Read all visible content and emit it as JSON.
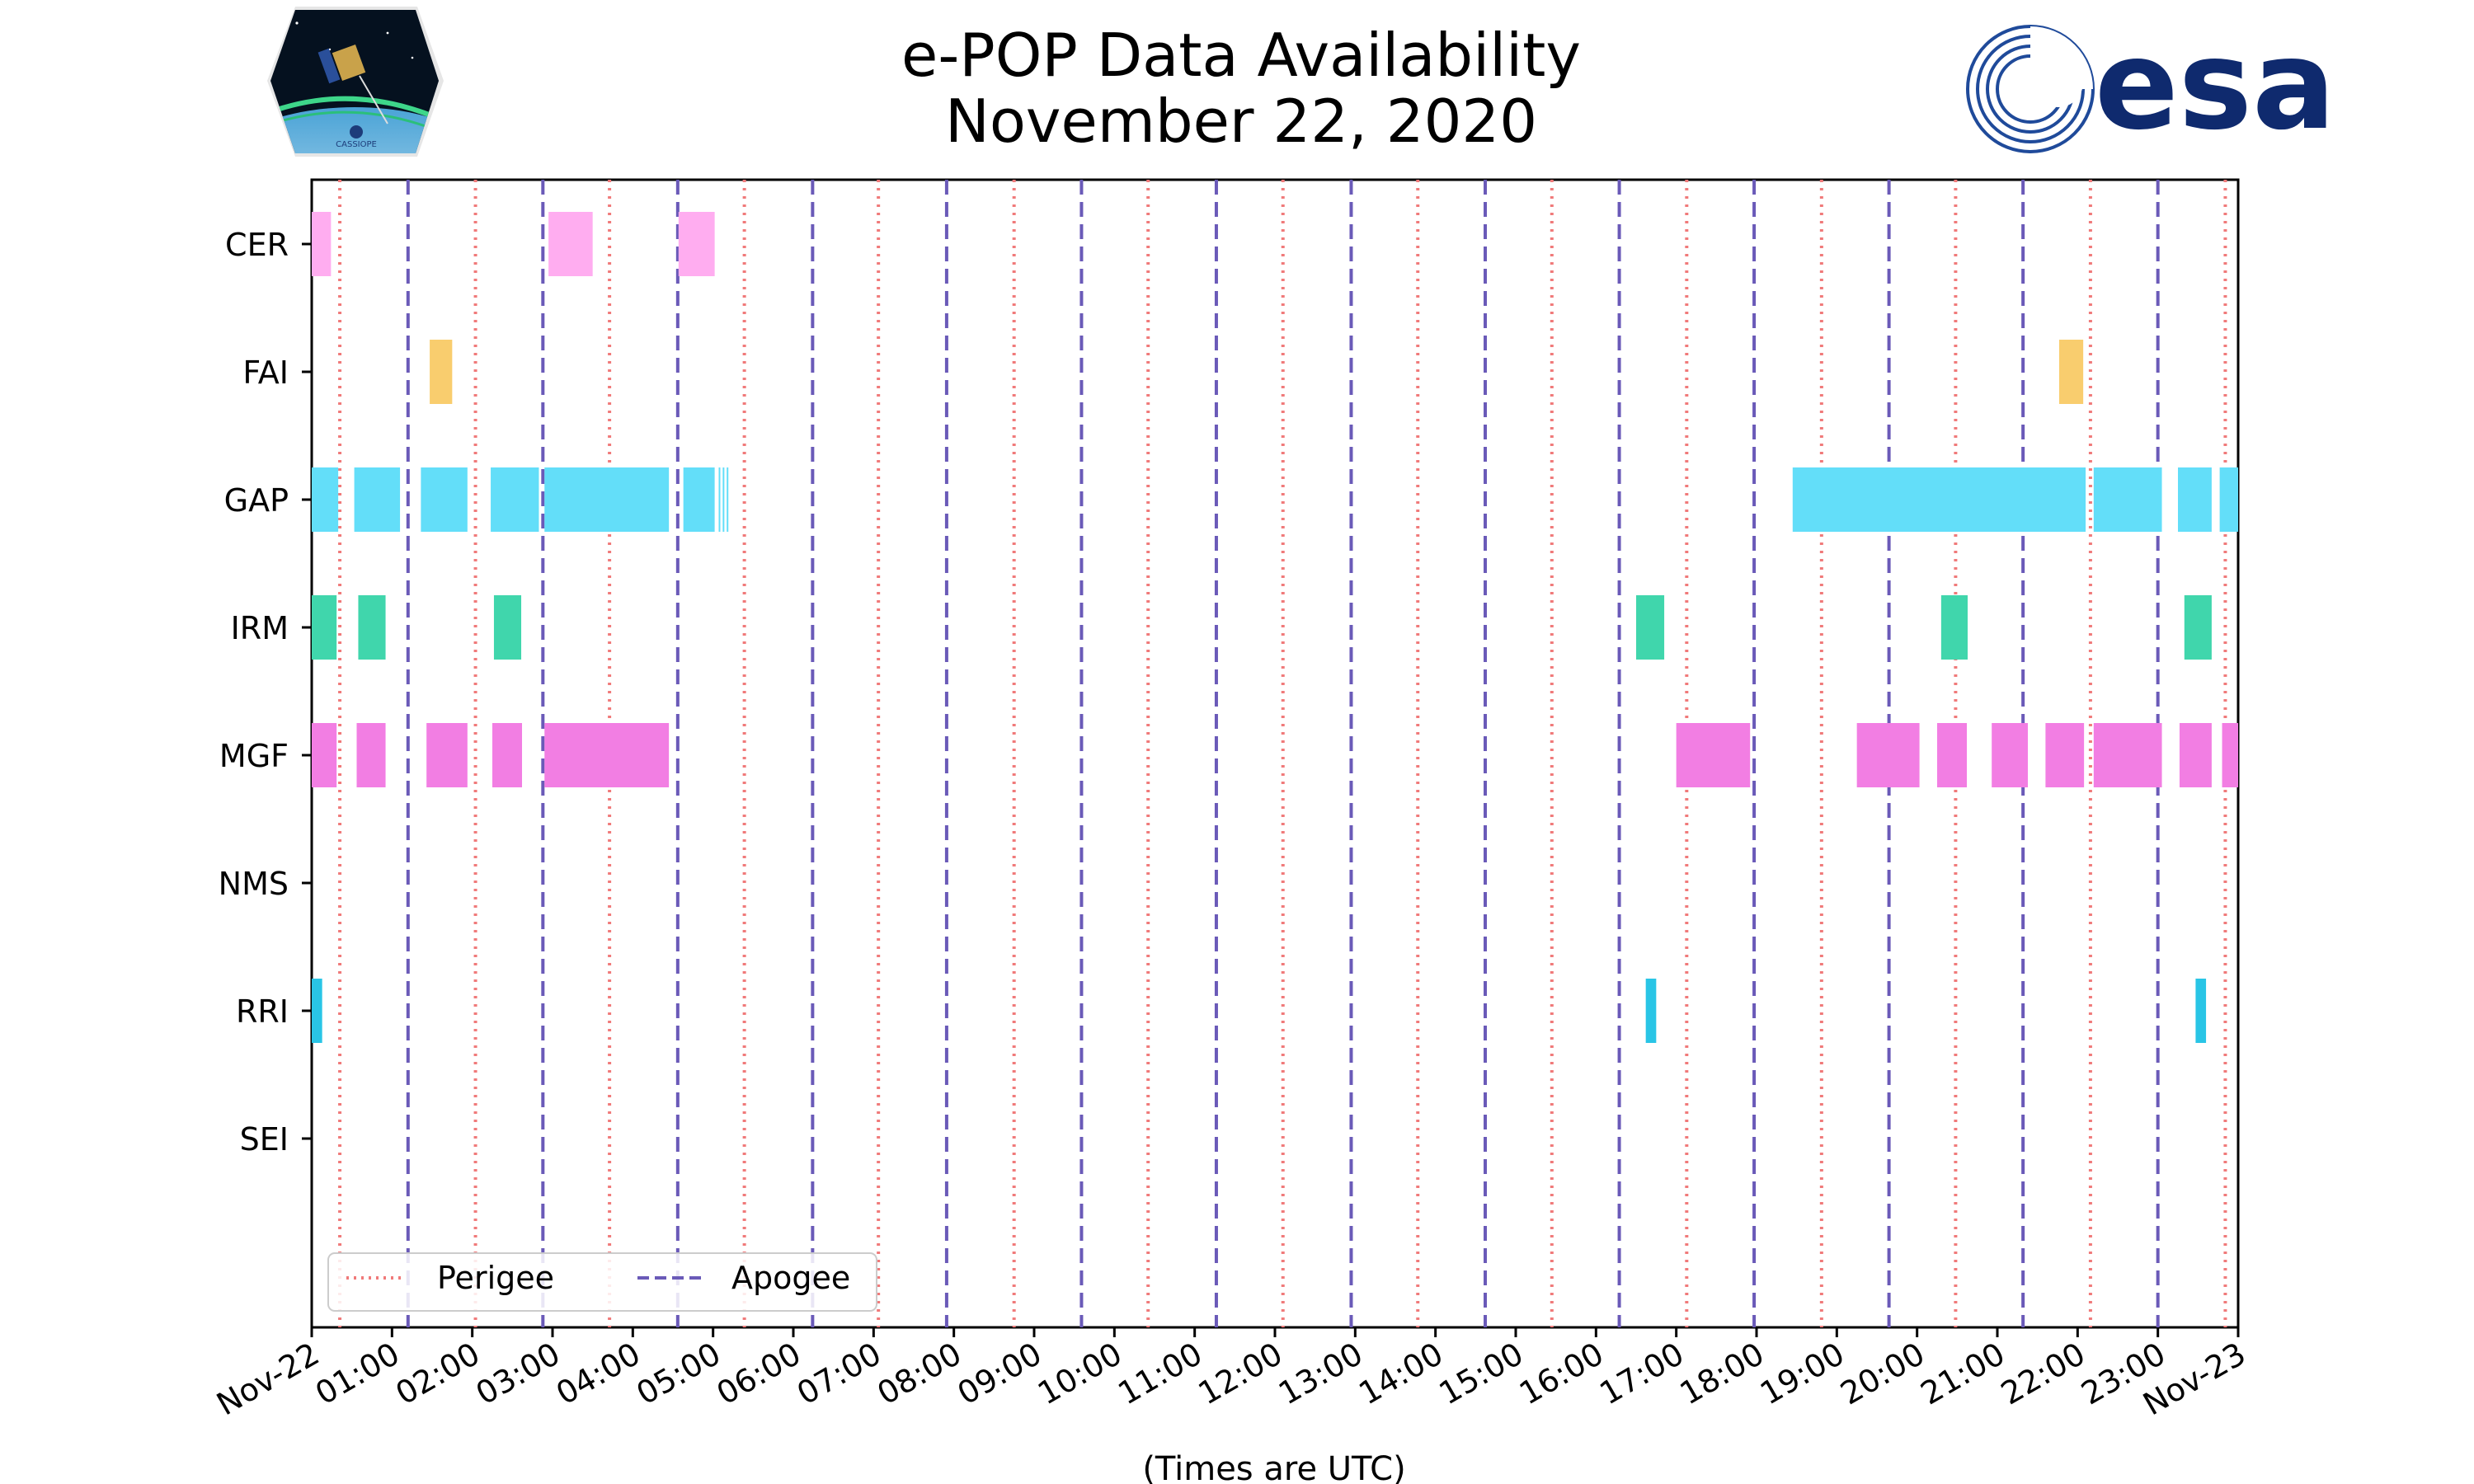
{
  "chart_data": {
    "type": "timeline",
    "title": "e-POP Data Availability",
    "subtitle": "November 22, 2020",
    "xlabel": "(Times are UTC)",
    "x_unit": "hours UTC",
    "xlim": [
      0,
      24
    ],
    "x_ticks": [
      {
        "value": 0,
        "label": "Nov-22"
      },
      {
        "value": 1,
        "label": "01:00"
      },
      {
        "value": 2,
        "label": "02:00"
      },
      {
        "value": 3,
        "label": "03:00"
      },
      {
        "value": 4,
        "label": "04:00"
      },
      {
        "value": 5,
        "label": "05:00"
      },
      {
        "value": 6,
        "label": "06:00"
      },
      {
        "value": 7,
        "label": "07:00"
      },
      {
        "value": 8,
        "label": "08:00"
      },
      {
        "value": 9,
        "label": "09:00"
      },
      {
        "value": 10,
        "label": "10:00"
      },
      {
        "value": 11,
        "label": "11:00"
      },
      {
        "value": 12,
        "label": "12:00"
      },
      {
        "value": 13,
        "label": "13:00"
      },
      {
        "value": 14,
        "label": "14:00"
      },
      {
        "value": 15,
        "label": "15:00"
      },
      {
        "value": 16,
        "label": "16:00"
      },
      {
        "value": 17,
        "label": "17:00"
      },
      {
        "value": 18,
        "label": "18:00"
      },
      {
        "value": 19,
        "label": "19:00"
      },
      {
        "value": 20,
        "label": "20:00"
      },
      {
        "value": 21,
        "label": "21:00"
      },
      {
        "value": 22,
        "label": "22:00"
      },
      {
        "value": 23,
        "label": "23:00"
      },
      {
        "value": 24,
        "label": "Nov-23"
      }
    ],
    "instruments": [
      {
        "name": "CER",
        "color": "#ffadf0",
        "intervals": [
          [
            0.0,
            0.24
          ],
          [
            2.95,
            3.5
          ],
          [
            4.57,
            5.02
          ]
        ]
      },
      {
        "name": "FAI",
        "color": "#f9cd6e",
        "intervals": [
          [
            1.47,
            1.75
          ],
          [
            21.77,
            22.07
          ]
        ]
      },
      {
        "name": "GAP",
        "color": "#63def9",
        "intervals": [
          [
            0.0,
            0.33
          ],
          [
            0.53,
            1.1
          ],
          [
            1.36,
            1.94
          ],
          [
            2.23,
            2.83
          ],
          [
            2.9,
            4.45
          ],
          [
            4.63,
            5.02
          ],
          [
            5.07,
            5.09
          ],
          [
            5.12,
            5.14
          ],
          [
            5.17,
            5.19
          ],
          [
            18.45,
            22.1
          ],
          [
            22.2,
            23.05
          ],
          [
            23.25,
            23.67
          ],
          [
            23.77,
            24.0
          ]
        ]
      },
      {
        "name": "IRM",
        "color": "#40d6ac",
        "intervals": [
          [
            0.0,
            0.31
          ],
          [
            0.58,
            0.92
          ],
          [
            2.27,
            2.61
          ],
          [
            16.5,
            16.85
          ],
          [
            20.3,
            20.63
          ],
          [
            23.33,
            23.67
          ]
        ]
      },
      {
        "name": "MGF",
        "color": "#f27ee3",
        "intervals": [
          [
            0.0,
            0.31
          ],
          [
            0.56,
            0.92
          ],
          [
            1.43,
            1.94
          ],
          [
            2.25,
            2.62
          ],
          [
            2.9,
            4.45
          ],
          [
            17.0,
            17.92
          ],
          [
            19.25,
            20.03
          ],
          [
            20.25,
            20.62
          ],
          [
            20.93,
            21.38
          ],
          [
            21.6,
            22.08
          ],
          [
            22.2,
            23.05
          ],
          [
            23.27,
            23.67
          ],
          [
            23.8,
            24.0
          ]
        ]
      },
      {
        "name": "NMS",
        "color": "#7fb2f0",
        "intervals": []
      },
      {
        "name": "RRI",
        "color": "#29c5e6",
        "intervals": [
          [
            0.0,
            0.13
          ],
          [
            16.62,
            16.75
          ],
          [
            23.47,
            23.6
          ]
        ]
      },
      {
        "name": "SEI",
        "color": "#f5a623",
        "intervals": []
      }
    ],
    "perigee_times": [
      0.35,
      2.04,
      3.71,
      5.39,
      7.06,
      8.75,
      10.42,
      12.1,
      13.78,
      15.45,
      17.13,
      18.81,
      20.48,
      22.16,
      23.84
    ],
    "apogee_times": [
      1.2,
      2.88,
      4.56,
      6.24,
      7.91,
      9.59,
      11.27,
      12.95,
      14.62,
      16.29,
      17.97,
      19.65,
      21.32,
      23.0
    ],
    "legend": {
      "placement": "lower-left",
      "entries": [
        "Perigee",
        "Apogee"
      ]
    },
    "perigee_color": "#f07a7a",
    "apogee_color": "#6a5ab8"
  },
  "logos": {
    "left": "CASSIOPE",
    "right": "esa"
  }
}
